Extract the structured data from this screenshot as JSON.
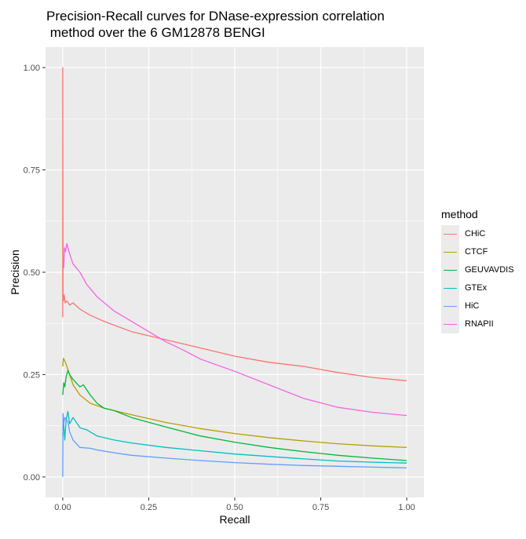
{
  "chart_data": {
    "type": "line",
    "title_lines": [
      "Precision-Recall curves for DNase-expression correlation",
      " method over the 6 GM12878 BENGI"
    ],
    "xlabel": "Recall",
    "ylabel": "Precision",
    "xlim": [
      0,
      1
    ],
    "ylim": [
      0,
      1
    ],
    "x_ticks": [
      0,
      0.25,
      0.5,
      0.75,
      1
    ],
    "x_tick_labels": [
      "0.00",
      "0.25",
      "0.50",
      "0.75",
      "1.00"
    ],
    "y_ticks": [
      0,
      0.25,
      0.5,
      0.75,
      1
    ],
    "y_tick_labels": [
      "0.00",
      "0.25",
      "0.50",
      "0.75",
      "1.00"
    ],
    "grid": true,
    "legend": {
      "title": "method",
      "position": "right"
    },
    "series": [
      {
        "name": "CHiC",
        "color": "#F8766D",
        "points": [
          [
            0,
            0.39
          ],
          [
            0,
            1.0
          ],
          [
            0.001,
            0.44
          ],
          [
            0.002,
            0.43
          ],
          [
            0.004,
            0.445
          ],
          [
            0.007,
            0.425
          ],
          [
            0.012,
            0.43
          ],
          [
            0.02,
            0.42
          ],
          [
            0.03,
            0.425
          ],
          [
            0.05,
            0.41
          ],
          [
            0.08,
            0.395
          ],
          [
            0.12,
            0.38
          ],
          [
            0.2,
            0.355
          ],
          [
            0.3,
            0.335
          ],
          [
            0.4,
            0.315
          ],
          [
            0.5,
            0.295
          ],
          [
            0.6,
            0.28
          ],
          [
            0.7,
            0.27
          ],
          [
            0.8,
            0.255
          ],
          [
            0.9,
            0.243
          ],
          [
            1.0,
            0.235
          ]
        ]
      },
      {
        "name": "CTCF",
        "color": "#B79F00",
        "points": [
          [
            0,
            0.27
          ],
          [
            0.002,
            0.29
          ],
          [
            0.005,
            0.285
          ],
          [
            0.01,
            0.275
          ],
          [
            0.02,
            0.25
          ],
          [
            0.03,
            0.225
          ],
          [
            0.05,
            0.2
          ],
          [
            0.08,
            0.18
          ],
          [
            0.12,
            0.168
          ],
          [
            0.2,
            0.152
          ],
          [
            0.3,
            0.133
          ],
          [
            0.4,
            0.118
          ],
          [
            0.5,
            0.106
          ],
          [
            0.6,
            0.096
          ],
          [
            0.7,
            0.088
          ],
          [
            0.8,
            0.081
          ],
          [
            0.9,
            0.076
          ],
          [
            1.0,
            0.072
          ]
        ]
      },
      {
        "name": "GEUVAVDIS",
        "color": "#00BA38",
        "points": [
          [
            0,
            0.2
          ],
          [
            0.003,
            0.23
          ],
          [
            0.006,
            0.22
          ],
          [
            0.01,
            0.245
          ],
          [
            0.015,
            0.26
          ],
          [
            0.02,
            0.25
          ],
          [
            0.03,
            0.238
          ],
          [
            0.05,
            0.22
          ],
          [
            0.06,
            0.225
          ],
          [
            0.08,
            0.2
          ],
          [
            0.1,
            0.18
          ],
          [
            0.12,
            0.168
          ],
          [
            0.15,
            0.162
          ],
          [
            0.2,
            0.145
          ],
          [
            0.3,
            0.122
          ],
          [
            0.4,
            0.1
          ],
          [
            0.5,
            0.085
          ],
          [
            0.6,
            0.072
          ],
          [
            0.7,
            0.062
          ],
          [
            0.8,
            0.053
          ],
          [
            0.9,
            0.046
          ],
          [
            1.0,
            0.04
          ]
        ]
      },
      {
        "name": "GTEx",
        "color": "#00BFC4",
        "points": [
          [
            0,
            0.1
          ],
          [
            0.002,
            0.14
          ],
          [
            0.006,
            0.09
          ],
          [
            0.01,
            0.14
          ],
          [
            0.015,
            0.16
          ],
          [
            0.02,
            0.13
          ],
          [
            0.03,
            0.145
          ],
          [
            0.05,
            0.12
          ],
          [
            0.07,
            0.115
          ],
          [
            0.1,
            0.1
          ],
          [
            0.15,
            0.09
          ],
          [
            0.2,
            0.083
          ],
          [
            0.3,
            0.072
          ],
          [
            0.4,
            0.064
          ],
          [
            0.5,
            0.056
          ],
          [
            0.6,
            0.05
          ],
          [
            0.7,
            0.044
          ],
          [
            0.8,
            0.039
          ],
          [
            0.9,
            0.036
          ],
          [
            1.0,
            0.034
          ]
        ]
      },
      {
        "name": "HiC",
        "color": "#619CFF",
        "points": [
          [
            0,
            0.0
          ],
          [
            0.001,
            0.155
          ],
          [
            0.003,
            0.13
          ],
          [
            0.006,
            0.145
          ],
          [
            0.01,
            0.14
          ],
          [
            0.015,
            0.135
          ],
          [
            0.02,
            0.11
          ],
          [
            0.03,
            0.09
          ],
          [
            0.05,
            0.072
          ],
          [
            0.08,
            0.07
          ],
          [
            0.1,
            0.066
          ],
          [
            0.15,
            0.059
          ],
          [
            0.2,
            0.053
          ],
          [
            0.3,
            0.046
          ],
          [
            0.4,
            0.04
          ],
          [
            0.5,
            0.035
          ],
          [
            0.6,
            0.031
          ],
          [
            0.7,
            0.028
          ],
          [
            0.8,
            0.026
          ],
          [
            0.9,
            0.024
          ],
          [
            1.0,
            0.022
          ]
        ]
      },
      {
        "name": "RNAPII",
        "color": "#F564E3",
        "points": [
          [
            0.003,
            0.51
          ],
          [
            0.005,
            0.56
          ],
          [
            0.008,
            0.55
          ],
          [
            0.012,
            0.57
          ],
          [
            0.015,
            0.56
          ],
          [
            0.02,
            0.545
          ],
          [
            0.03,
            0.52
          ],
          [
            0.05,
            0.5
          ],
          [
            0.07,
            0.47
          ],
          [
            0.1,
            0.44
          ],
          [
            0.15,
            0.405
          ],
          [
            0.2,
            0.38
          ],
          [
            0.25,
            0.355
          ],
          [
            0.3,
            0.33
          ],
          [
            0.35,
            0.31
          ],
          [
            0.4,
            0.288
          ],
          [
            0.5,
            0.258
          ],
          [
            0.6,
            0.225
          ],
          [
            0.7,
            0.192
          ],
          [
            0.8,
            0.17
          ],
          [
            0.9,
            0.158
          ],
          [
            1.0,
            0.15
          ]
        ]
      }
    ]
  }
}
